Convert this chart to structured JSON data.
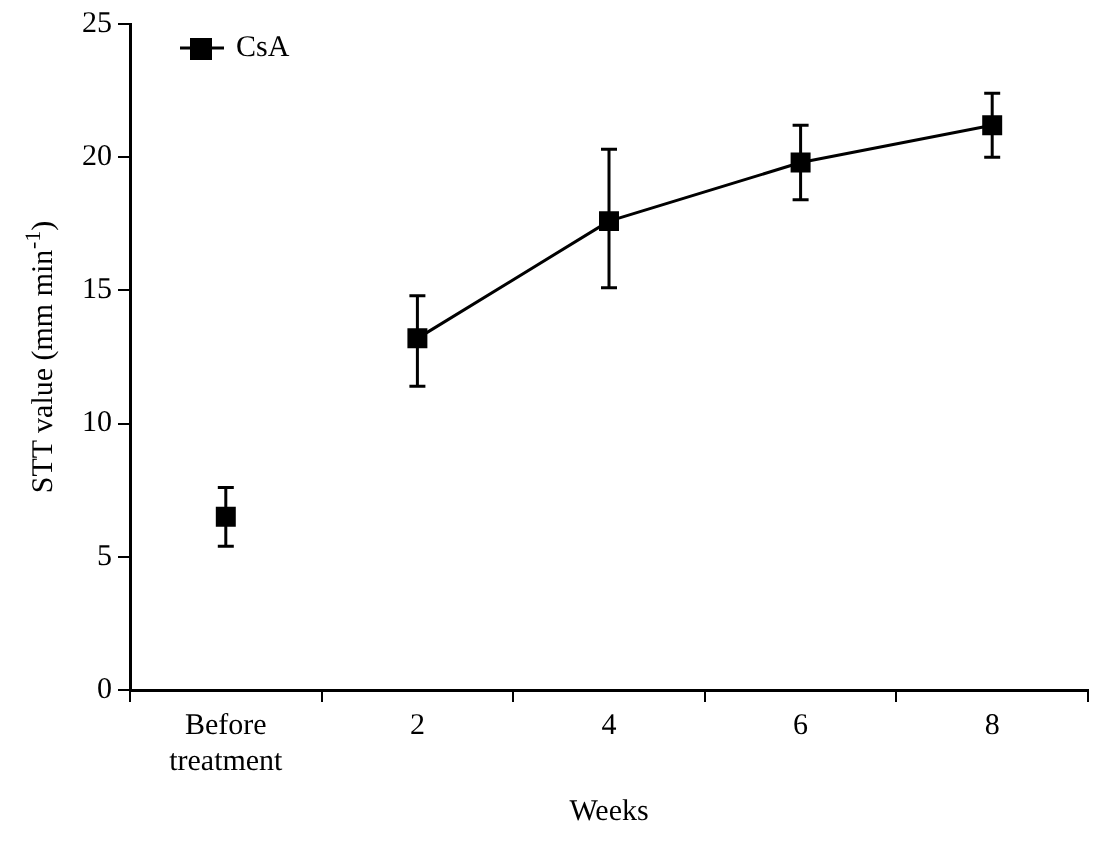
{
  "chart_data": {
    "type": "line",
    "xlabel": "Weeks",
    "ylabel": "STT value (mm min$^{-1}$)",
    "categories": [
      "Before treatment",
      "2",
      "4",
      "6",
      "8"
    ],
    "series": [
      {
        "type": "scatter",
        "color": "#000000",
        "values": [
          6.5,
          null,
          null,
          null,
          null
        ],
        "errors": [
          [
            5.4,
            7.6
          ],
          null,
          null,
          null,
          null
        ]
      },
      {
        "name": "CsA",
        "color": "#000000",
        "values": [
          null,
          13.2,
          17.6,
          19.8,
          21.2
        ],
        "errors": [
          null,
          [
            11.4,
            14.8
          ],
          [
            15.1,
            20.3
          ],
          [
            18.4,
            21.2
          ],
          [
            20.0,
            22.4
          ]
        ]
      }
    ],
    "ylim": [
      0,
      25
    ],
    "yticks": [
      0,
      5,
      10,
      15,
      20,
      25
    ],
    "grid": false,
    "legend": "top left",
    "marker": "square",
    "line_style": "solid"
  }
}
